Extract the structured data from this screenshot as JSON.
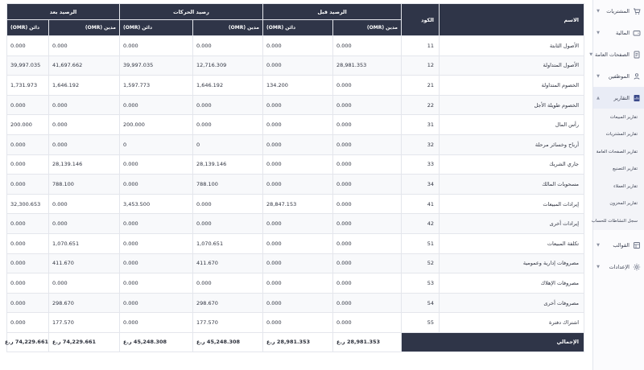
{
  "sidebar": {
    "items": [
      {
        "id": "purchases",
        "label": "المشتريات",
        "icon": "cart-icon"
      },
      {
        "id": "finance",
        "label": "المالية",
        "icon": "wallet-icon"
      },
      {
        "id": "assets",
        "label": "الصفحات العامة",
        "icon": "document-icon"
      },
      {
        "id": "employees",
        "label": "الموظفين",
        "icon": "users-icon"
      },
      {
        "id": "reports",
        "label": "التقارير",
        "icon": "report-icon"
      }
    ],
    "submenu": [
      "تقارير المبيعات",
      "تقارير المشتريات",
      "تقارير الصفحات العامة",
      "تقارير التصنيع",
      "تقارير العملاء",
      "تقارير المخزون",
      "سجل النشاطات للحساب"
    ],
    "bottom_items": [
      {
        "id": "templates",
        "label": "القوالب",
        "icon": "template-icon"
      },
      {
        "id": "settings",
        "label": "الإعدادات",
        "icon": "gear-icon"
      }
    ]
  },
  "table": {
    "header": {
      "name": "الاسم",
      "code": "الكود",
      "group_before": "الرصيد قبل",
      "group_movements": "رصيد الحركات",
      "group_after": "الرصيد بعد",
      "debit": "مدين (OMR)",
      "credit": "دائن (OMR)"
    },
    "rows": [
      {
        "name": "الأصول الثابتة",
        "code": "11",
        "before_debit": "0.000",
        "before_credit": "0.000",
        "mov_debit": "0.000",
        "mov_credit": "0.000",
        "after_debit": "0.000",
        "after_credit": "0.000"
      },
      {
        "name": "الأصول المتداولة",
        "code": "12",
        "before_debit": "28,981.353",
        "before_credit": "0.000",
        "mov_debit": "12,716.309",
        "mov_credit": "39,997.035",
        "after_debit": "41,697.662",
        "after_credit": "39,997.035"
      },
      {
        "name": "الخصوم المتداولة",
        "code": "21",
        "before_debit": "0.000",
        "before_credit": "134.200",
        "mov_debit": "1,646.192",
        "mov_credit": "1,597.773",
        "after_debit": "1,646.192",
        "after_credit": "1,731.973"
      },
      {
        "name": "الخصوم طويلة الأجل",
        "code": "22",
        "before_debit": "0.000",
        "before_credit": "0.000",
        "mov_debit": "0.000",
        "mov_credit": "0.000",
        "after_debit": "0.000",
        "after_credit": "0.000"
      },
      {
        "name": "رأس المال",
        "code": "31",
        "before_debit": "0.000",
        "before_credit": "0.000",
        "mov_debit": "0.000",
        "mov_credit": "200.000",
        "after_debit": "0.000",
        "after_credit": "200.000"
      },
      {
        "name": "أرباح وخسائر مرحلة",
        "code": "32",
        "before_debit": "0.000",
        "before_credit": "0.000",
        "mov_debit": "0",
        "mov_credit": "0",
        "after_debit": "0.000",
        "after_credit": "0.000"
      },
      {
        "name": "جاري الشريك",
        "code": "33",
        "before_debit": "0.000",
        "before_credit": "0.000",
        "mov_debit": "28,139.146",
        "mov_credit": "0.000",
        "after_debit": "28,139.146",
        "after_credit": "0.000"
      },
      {
        "name": "مسحوبات المالك",
        "code": "34",
        "before_debit": "0.000",
        "before_credit": "0.000",
        "mov_debit": "788.100",
        "mov_credit": "0.000",
        "after_debit": "788.100",
        "after_credit": "0.000"
      },
      {
        "name": "إيرادات المبيعات",
        "code": "41",
        "before_debit": "0.000",
        "before_credit": "28,847.153",
        "mov_debit": "0.000",
        "mov_credit": "3,453.500",
        "after_debit": "0.000",
        "after_credit": "32,300.653"
      },
      {
        "name": "إيرادات أخرى",
        "code": "42",
        "before_debit": "0.000",
        "before_credit": "0.000",
        "mov_debit": "0.000",
        "mov_credit": "0.000",
        "after_debit": "0.000",
        "after_credit": "0.000"
      },
      {
        "name": "تكلفة المبيعات",
        "code": "51",
        "before_debit": "0.000",
        "before_credit": "0.000",
        "mov_debit": "1,070.651",
        "mov_credit": "0.000",
        "after_debit": "1,070.651",
        "after_credit": "0.000"
      },
      {
        "name": "مصروفات إدارية وعمومية",
        "code": "52",
        "before_debit": "0.000",
        "before_credit": "0.000",
        "mov_debit": "411.670",
        "mov_credit": "0.000",
        "after_debit": "411.670",
        "after_credit": "0.000"
      },
      {
        "name": "مصروفات الإهلاك",
        "code": "53",
        "before_debit": "0.000",
        "before_credit": "0.000",
        "mov_debit": "0.000",
        "mov_credit": "0.000",
        "after_debit": "0.000",
        "after_credit": "0.000"
      },
      {
        "name": "مصروفات أخرى",
        "code": "54",
        "before_debit": "0.000",
        "before_credit": "0.000",
        "mov_debit": "298.670",
        "mov_credit": "0.000",
        "after_debit": "298.670",
        "after_credit": "0.000"
      },
      {
        "name": "اشتراك دفترة",
        "code": "55",
        "before_debit": "0.000",
        "before_credit": "0.000",
        "mov_debit": "177.570",
        "mov_credit": "0.000",
        "after_debit": "177.570",
        "after_credit": "0.000"
      }
    ],
    "totals": {
      "label": "الإجمالي",
      "before_debit": "28,981.353 ر.ع",
      "before_credit": "28,981.353 ر.ع",
      "mov_debit": "45,248.308 ر.ع",
      "mov_credit": "45,248.308 ر.ع",
      "after_debit": "74,229.661 ر.ع",
      "after_credit": "74,229.661 ر.ع"
    }
  },
  "colors": {
    "header_bg": "#2f3548",
    "header_text": "#ffffff",
    "sidebar_active": "#e9ecf6"
  }
}
